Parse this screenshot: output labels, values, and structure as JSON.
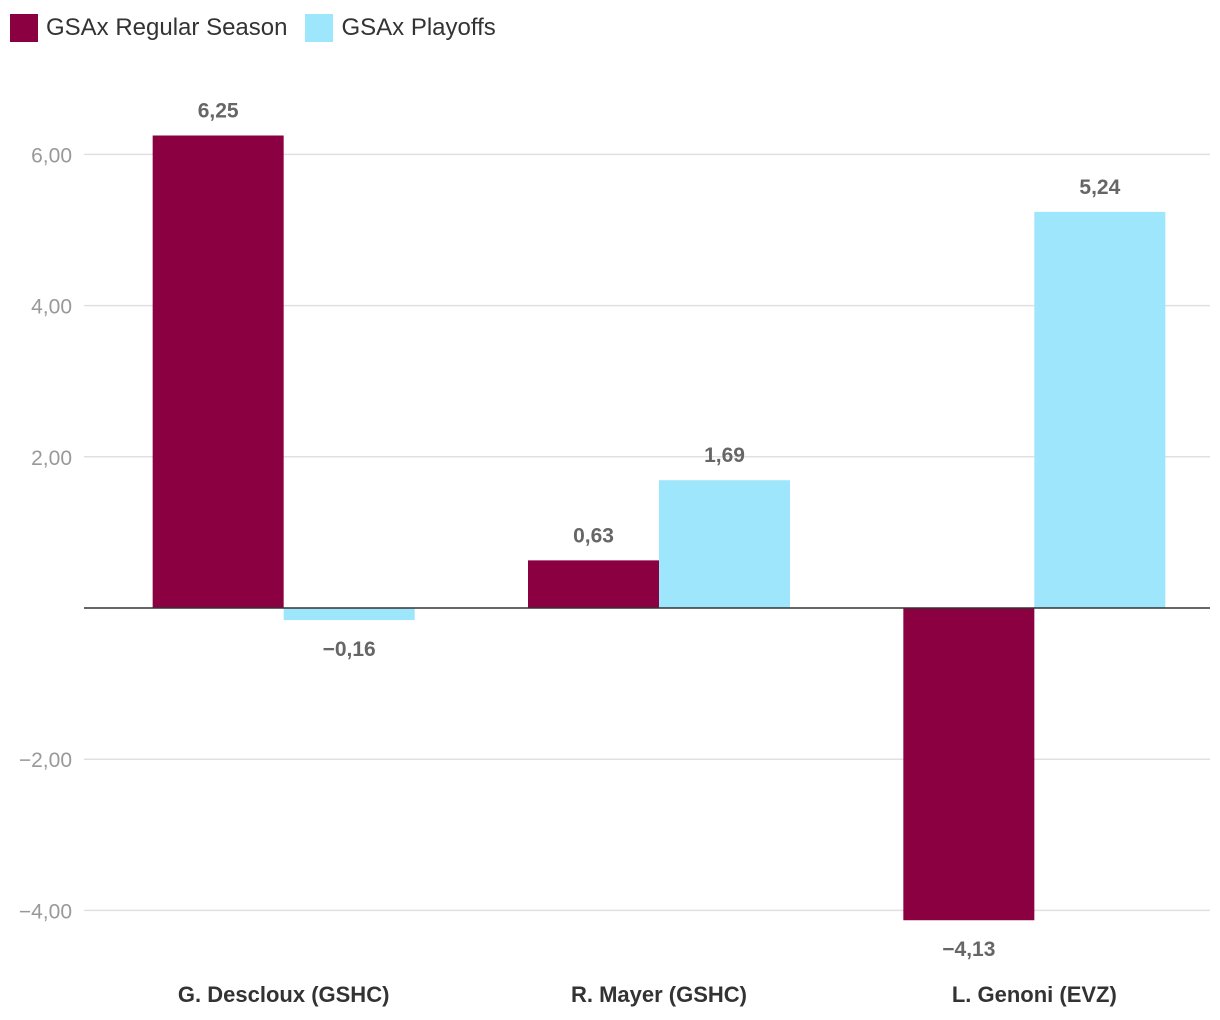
{
  "legend": {
    "series_0": "GSAx Regular Season",
    "series_1": "GSAx Playoffs"
  },
  "chart_data": {
    "type": "bar",
    "categories": [
      "G. Descloux (GSHC)",
      "R. Mayer (GSHC)",
      "L. Genoni (EVZ)"
    ],
    "series": [
      {
        "name": "GSAx Regular Season",
        "color": "#8b0041",
        "values": [
          6.25,
          0.63,
          -4.13
        ],
        "labels": [
          "6,25",
          "0,63",
          "−4,13"
        ]
      },
      {
        "name": "GSAx Playoffs",
        "color": "#9ee6fc",
        "values": [
          -0.16,
          1.69,
          5.24
        ],
        "labels": [
          "−0,16",
          "1,69",
          "5,24"
        ]
      }
    ],
    "yticks": [
      6,
      4,
      2,
      -2,
      -4
    ],
    "ytick_labels": [
      "6,00",
      "4,00",
      "2,00",
      "−2,00",
      "−4,00"
    ],
    "ylim": [
      -4.5,
      6.5
    ],
    "grid": true,
    "legend_position": "top-left",
    "xlabel": "",
    "ylabel": ""
  }
}
